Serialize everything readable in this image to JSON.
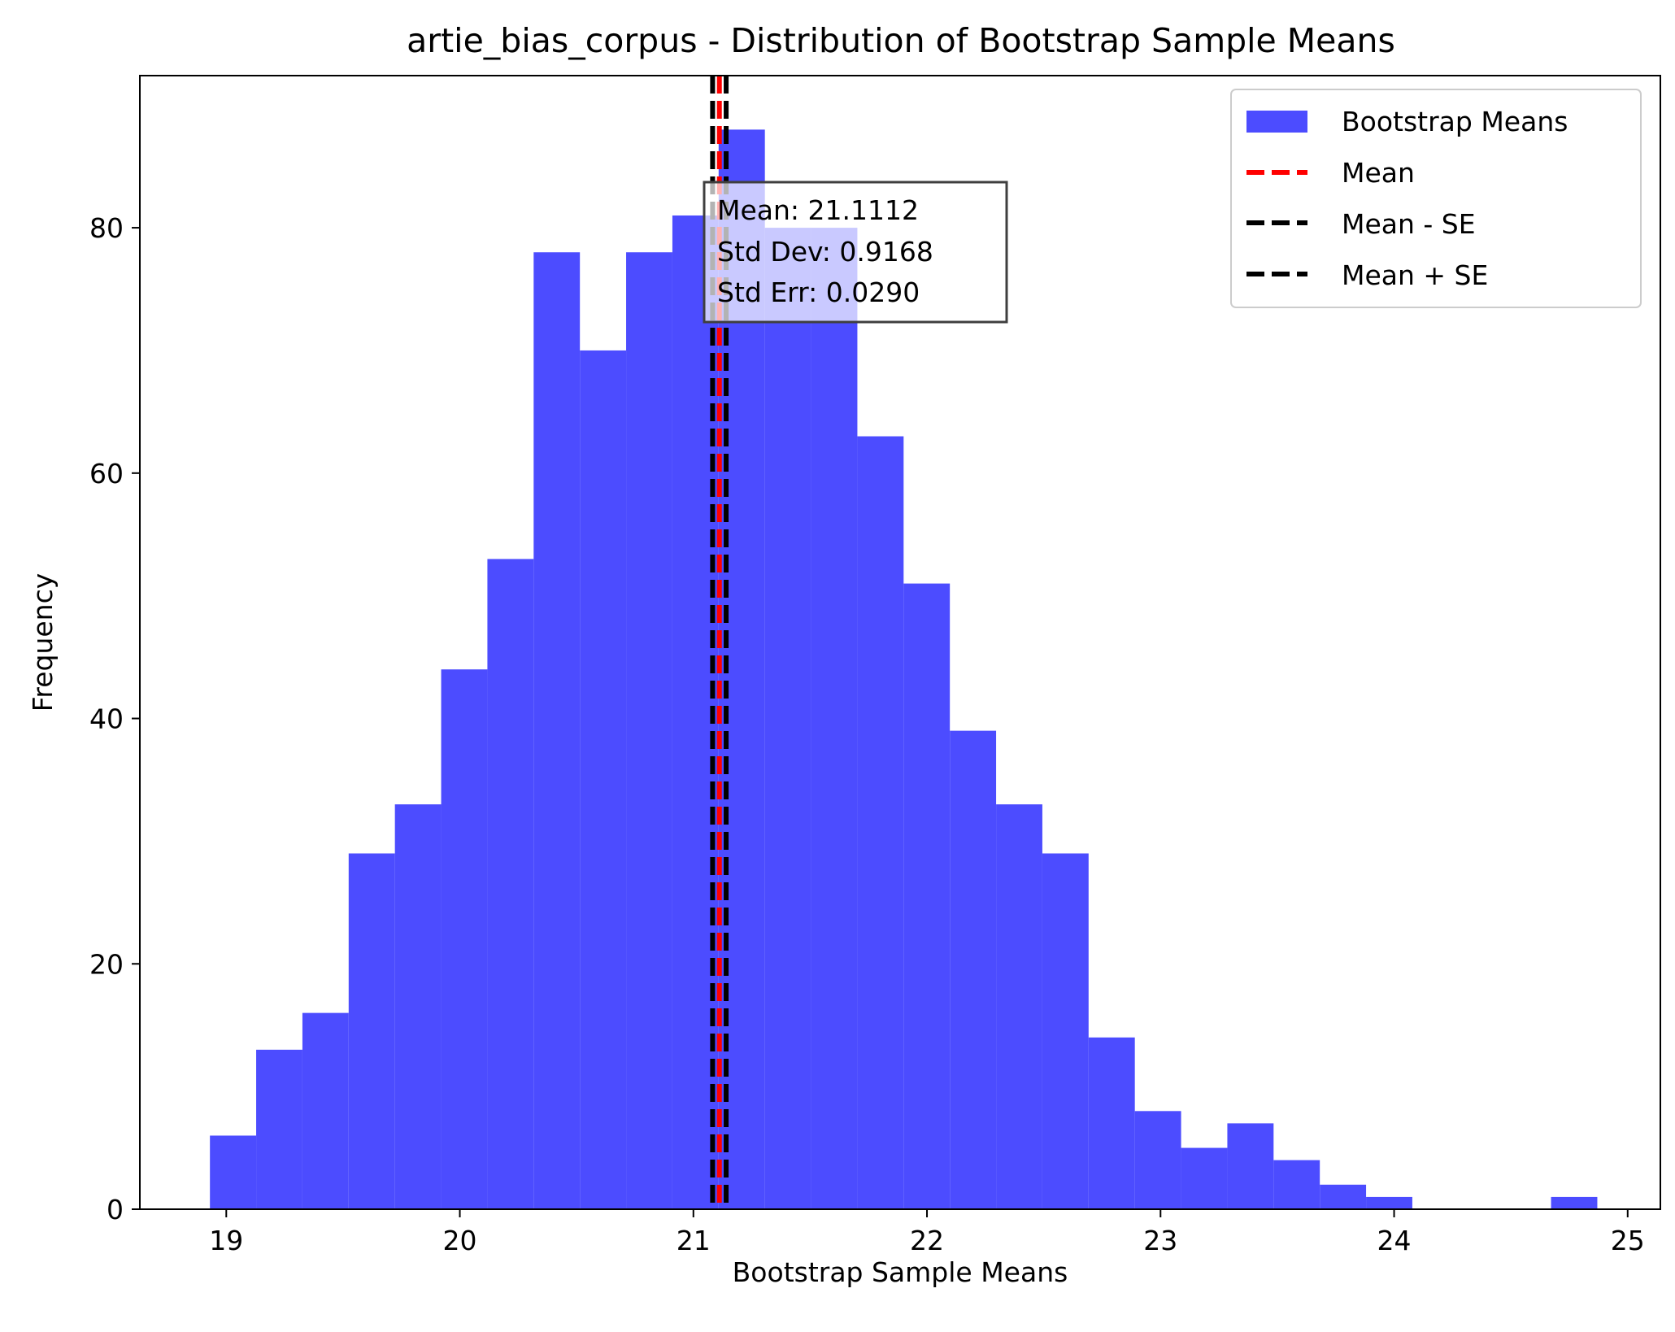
{
  "chart_data": {
    "type": "bar",
    "title": "artie_bias_corpus - Distribution of Bootstrap Sample Means",
    "xlabel": "Bootstrap Sample Means",
    "ylabel": "Frequency",
    "xlim": [
      18.63,
      25.14
    ],
    "ylim": [
      0,
      92.4
    ],
    "xticks": [
      19,
      20,
      21,
      22,
      23,
      24,
      25
    ],
    "yticks": [
      0,
      20,
      40,
      60,
      80
    ],
    "grid": false,
    "legend_position": "top-right",
    "bins": {
      "start": 18.93,
      "width": 0.198,
      "counts": [
        6,
        13,
        16,
        29,
        33,
        44,
        53,
        78,
        70,
        78,
        81,
        88,
        80,
        80,
        63,
        51,
        39,
        33,
        29,
        14,
        8,
        5,
        7,
        4,
        2,
        1,
        0,
        0,
        0,
        1
      ]
    },
    "series": [
      {
        "name": "Bootstrap Means",
        "kind": "histogram",
        "color": "#4c4cff"
      },
      {
        "name": "Mean",
        "kind": "vline",
        "x": 21.1112,
        "color": "#ff0000",
        "style": "dashed"
      },
      {
        "name": "Mean - SE",
        "kind": "vline",
        "x": 21.0822,
        "color": "#000000",
        "style": "dashed"
      },
      {
        "name": "Mean + SE",
        "kind": "vline",
        "x": 21.1402,
        "color": "#000000",
        "style": "dashed"
      }
    ],
    "annotation": {
      "lines": [
        "Mean: 21.1112",
        "Std Dev: 0.9168",
        "Std Err: 0.0290"
      ]
    }
  }
}
